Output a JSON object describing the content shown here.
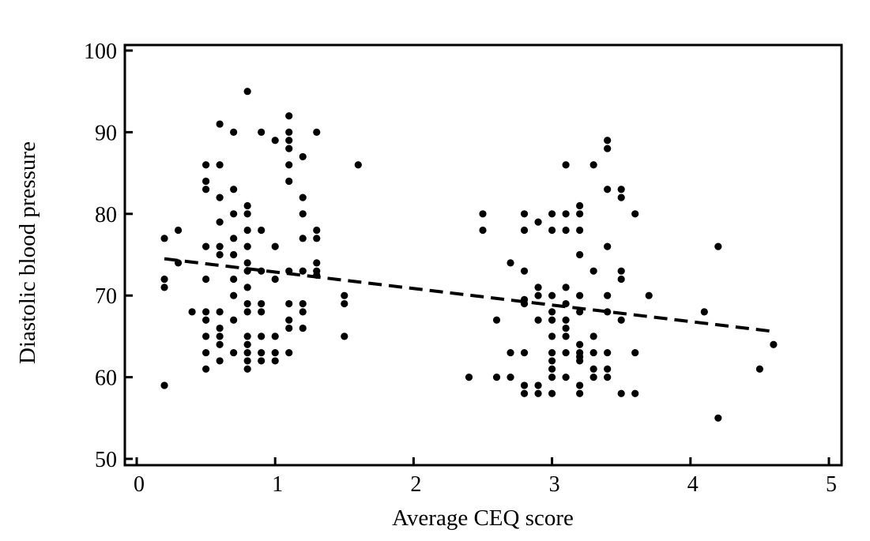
{
  "chart_data": {
    "type": "scatter",
    "xlabel": "Average CEQ score",
    "ylabel": "Diastolic blood pressure",
    "xlim": [
      0,
      5
    ],
    "ylim": [
      50,
      100
    ],
    "x_ticks": [
      {
        "value": 0,
        "label": "0"
      },
      {
        "value": 1,
        "label": "1"
      },
      {
        "value": 2,
        "label": "2"
      },
      {
        "value": 3,
        "label": "3"
      },
      {
        "value": 4,
        "label": "4"
      },
      {
        "value": 5,
        "label": "5"
      }
    ],
    "y_ticks": [
      {
        "value": 50,
        "label": "50"
      },
      {
        "value": 60,
        "label": "60"
      },
      {
        "value": 70,
        "label": "70"
      },
      {
        "value": 80,
        "label": "80"
      },
      {
        "value": 90,
        "label": "90"
      },
      {
        "value": 100,
        "label": "100"
      }
    ],
    "grid": false,
    "legend": "none",
    "trend_line": {
      "style": "dashed",
      "x": [
        0.2,
        4.6
      ],
      "y": [
        74.5,
        65.6
      ]
    },
    "points": [
      [
        0.2,
        77
      ],
      [
        0.2,
        72
      ],
      [
        0.2,
        71
      ],
      [
        0.2,
        59
      ],
      [
        0.3,
        78
      ],
      [
        0.3,
        74
      ],
      [
        0.4,
        68
      ],
      [
        0.5,
        86
      ],
      [
        0.5,
        84
      ],
      [
        0.5,
        83
      ],
      [
        0.5,
        76
      ],
      [
        0.5,
        72
      ],
      [
        0.5,
        68
      ],
      [
        0.5,
        67
      ],
      [
        0.5,
        65
      ],
      [
        0.5,
        63
      ],
      [
        0.5,
        61
      ],
      [
        0.6,
        91
      ],
      [
        0.6,
        86
      ],
      [
        0.6,
        82
      ],
      [
        0.6,
        79
      ],
      [
        0.6,
        76
      ],
      [
        0.6,
        75
      ],
      [
        0.6,
        68
      ],
      [
        0.6,
        66
      ],
      [
        0.6,
        65
      ],
      [
        0.6,
        64
      ],
      [
        0.6,
        62
      ],
      [
        0.7,
        90
      ],
      [
        0.7,
        83
      ],
      [
        0.7,
        80
      ],
      [
        0.7,
        77
      ],
      [
        0.7,
        75
      ],
      [
        0.7,
        72
      ],
      [
        0.7,
        70
      ],
      [
        0.7,
        67
      ],
      [
        0.7,
        63
      ],
      [
        0.8,
        95
      ],
      [
        0.8,
        81
      ],
      [
        0.8,
        80
      ],
      [
        0.8,
        78
      ],
      [
        0.8,
        76
      ],
      [
        0.8,
        74
      ],
      [
        0.8,
        73
      ],
      [
        0.8,
        71
      ],
      [
        0.8,
        69
      ],
      [
        0.8,
        68
      ],
      [
        0.8,
        65
      ],
      [
        0.8,
        64
      ],
      [
        0.8,
        63
      ],
      [
        0.8,
        62
      ],
      [
        0.8,
        61
      ],
      [
        0.9,
        90
      ],
      [
        0.9,
        78
      ],
      [
        0.9,
        73
      ],
      [
        0.9,
        69
      ],
      [
        0.9,
        68
      ],
      [
        0.9,
        65
      ],
      [
        0.9,
        63
      ],
      [
        0.9,
        62
      ],
      [
        1.0,
        89
      ],
      [
        1.0,
        76
      ],
      [
        1.0,
        72
      ],
      [
        1.0,
        65
      ],
      [
        1.0,
        63
      ],
      [
        1.0,
        62
      ],
      [
        1.1,
        92
      ],
      [
        1.1,
        90
      ],
      [
        1.1,
        89
      ],
      [
        1.1,
        88
      ],
      [
        1.1,
        86
      ],
      [
        1.1,
        84
      ],
      [
        1.1,
        73
      ],
      [
        1.1,
        69
      ],
      [
        1.1,
        67
      ],
      [
        1.1,
        66
      ],
      [
        1.1,
        63
      ],
      [
        1.2,
        87
      ],
      [
        1.2,
        82
      ],
      [
        1.2,
        80
      ],
      [
        1.2,
        77
      ],
      [
        1.2,
        73
      ],
      [
        1.2,
        69
      ],
      [
        1.2,
        68
      ],
      [
        1.2,
        66
      ],
      [
        1.3,
        90
      ],
      [
        1.3,
        78
      ],
      [
        1.3,
        77
      ],
      [
        1.3,
        74
      ],
      [
        1.3,
        73
      ],
      [
        1.3,
        72.5
      ],
      [
        1.5,
        70
      ],
      [
        1.5,
        69
      ],
      [
        1.5,
        65
      ],
      [
        1.6,
        86
      ],
      [
        2.4,
        60
      ],
      [
        2.5,
        80
      ],
      [
        2.5,
        78
      ],
      [
        2.6,
        67
      ],
      [
        2.6,
        60
      ],
      [
        2.7,
        74
      ],
      [
        2.7,
        63
      ],
      [
        2.7,
        60
      ],
      [
        2.8,
        80
      ],
      [
        2.8,
        78
      ],
      [
        2.8,
        73
      ],
      [
        2.8,
        69.5
      ],
      [
        2.8,
        69
      ],
      [
        2.8,
        63
      ],
      [
        2.8,
        59
      ],
      [
        2.8,
        58
      ],
      [
        2.9,
        79
      ],
      [
        2.9,
        71
      ],
      [
        2.9,
        70
      ],
      [
        2.9,
        67
      ],
      [
        2.9,
        59
      ],
      [
        2.9,
        58
      ],
      [
        3.0,
        80
      ],
      [
        3.0,
        78
      ],
      [
        3.0,
        70
      ],
      [
        3.0,
        68
      ],
      [
        3.0,
        67
      ],
      [
        3.0,
        65
      ],
      [
        3.0,
        63
      ],
      [
        3.0,
        62
      ],
      [
        3.0,
        61
      ],
      [
        3.0,
        60
      ],
      [
        3.0,
        58
      ],
      [
        3.1,
        86
      ],
      [
        3.1,
        80
      ],
      [
        3.1,
        78
      ],
      [
        3.1,
        71
      ],
      [
        3.1,
        69
      ],
      [
        3.1,
        67
      ],
      [
        3.1,
        66
      ],
      [
        3.1,
        65
      ],
      [
        3.1,
        63
      ],
      [
        3.1,
        60
      ],
      [
        3.2,
        81
      ],
      [
        3.2,
        80
      ],
      [
        3.2,
        78
      ],
      [
        3.2,
        75
      ],
      [
        3.2,
        70
      ],
      [
        3.2,
        68
      ],
      [
        3.2,
        64
      ],
      [
        3.2,
        63
      ],
      [
        3.2,
        62.5
      ],
      [
        3.2,
        62
      ],
      [
        3.2,
        59
      ],
      [
        3.2,
        58
      ],
      [
        3.3,
        86
      ],
      [
        3.3,
        73
      ],
      [
        3.3,
        65
      ],
      [
        3.3,
        63
      ],
      [
        3.3,
        61
      ],
      [
        3.3,
        60
      ],
      [
        3.4,
        89
      ],
      [
        3.4,
        88
      ],
      [
        3.4,
        83
      ],
      [
        3.4,
        76
      ],
      [
        3.4,
        70
      ],
      [
        3.4,
        68
      ],
      [
        3.4,
        63
      ],
      [
        3.4,
        61
      ],
      [
        3.4,
        60
      ],
      [
        3.5,
        83
      ],
      [
        3.5,
        82
      ],
      [
        3.5,
        73
      ],
      [
        3.5,
        72
      ],
      [
        3.5,
        67
      ],
      [
        3.5,
        58
      ],
      [
        3.6,
        80
      ],
      [
        3.6,
        63
      ],
      [
        3.6,
        58
      ],
      [
        3.7,
        70
      ],
      [
        4.1,
        68
      ],
      [
        4.2,
        76
      ],
      [
        4.2,
        55
      ],
      [
        4.5,
        61
      ],
      [
        4.6,
        64
      ]
    ]
  }
}
